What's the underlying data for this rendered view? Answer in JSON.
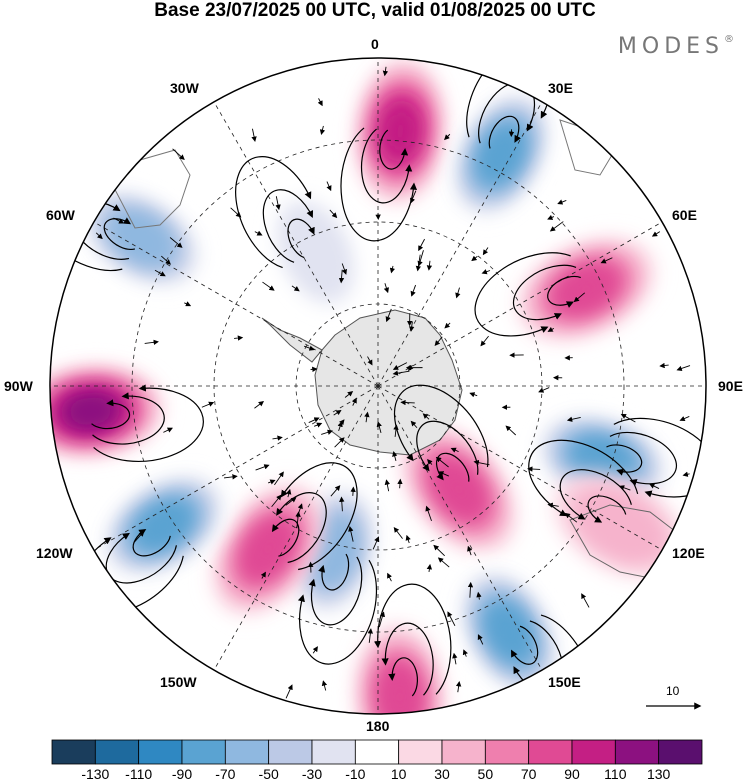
{
  "title": "Base 23/07/2025 00 UTC, valid 01/08/2025 00 UTC",
  "brand": {
    "name": "MODES",
    "mark": "®"
  },
  "longitude_labels": {
    "lon_0": "0",
    "lon_30e": "30E",
    "lon_60e": "60E",
    "lon_90e": "90E",
    "lon_120e": "120E",
    "lon_150e": "150E",
    "lon_180": "180",
    "lon_150w": "150W",
    "lon_120w": "120W",
    "lon_90w": "90W",
    "lon_60w": "60W",
    "lon_30w": "30W"
  },
  "reference_vector": {
    "value": "10"
  },
  "colorbar": {
    "ticks": [
      "-130",
      "-110",
      "-90",
      "-70",
      "-50",
      "-30",
      "-10",
      "10",
      "30",
      "50",
      "70",
      "90",
      "110",
      "130"
    ],
    "colors": [
      "#1a3d5c",
      "#1e6a9e",
      "#2f88c2",
      "#5aa3d2",
      "#8fb8e0",
      "#bcc9e6",
      "#e1e3f1",
      "#ffffff",
      "#fbd9e4",
      "#f6b3cc",
      "#ef7fae",
      "#e04a94",
      "#c41f84",
      "#8c1180",
      "#5a0f6e"
    ]
  },
  "anomalies": [
    {
      "name": "high-0",
      "lon": 5,
      "r": 0.78,
      "value": 90
    },
    {
      "name": "low-25e",
      "lon": 28,
      "r": 0.8,
      "value": -90
    },
    {
      "name": "high-60e",
      "lon": 65,
      "r": 0.7,
      "value": 80
    },
    {
      "name": "low-110e",
      "lon": 108,
      "r": 0.72,
      "value": -90
    },
    {
      "name": "high-140e",
      "lon": 142,
      "r": 0.4,
      "value": 70
    },
    {
      "name": "high-120e",
      "lon": 120,
      "r": 0.85,
      "value": 40
    },
    {
      "name": "low-150e",
      "lon": 152,
      "r": 0.85,
      "value": -90
    },
    {
      "name": "high-175e",
      "lon": 176,
      "r": 0.95,
      "value": 70
    },
    {
      "name": "low-170w",
      "lon": 195,
      "r": 0.52,
      "value": -70
    },
    {
      "name": "high-150w",
      "lon": 214,
      "r": 0.6,
      "value": 70
    },
    {
      "name": "low-125w",
      "lon": 237,
      "r": 0.78,
      "value": -90
    },
    {
      "name": "high-95w",
      "lon": 265,
      "r": 0.88,
      "value": 110
    },
    {
      "name": "low-60w",
      "lon": 302,
      "r": 0.85,
      "value": -70
    },
    {
      "name": "low-30w",
      "lon": 335,
      "r": 0.45,
      "value": -30
    }
  ]
}
